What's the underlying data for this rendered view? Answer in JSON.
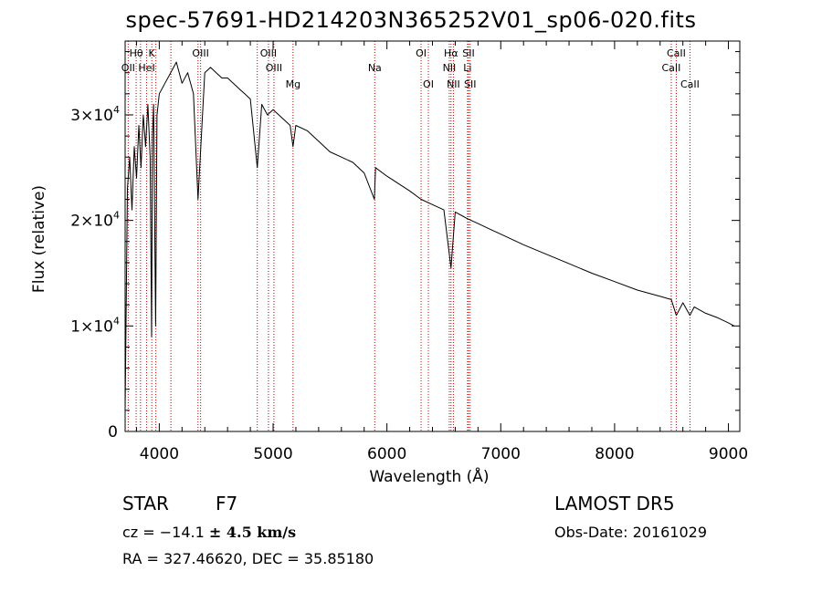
{
  "title": "spec-57691-HD214203N365252V01_sp06-020.fits",
  "info": {
    "class_label": "STAR",
    "subclass": "F7",
    "survey": "LAMOST  DR5",
    "cz_prefix": "cz = −14.1 ",
    "cz_error": "± 4.5 km/s",
    "obs_date": "Obs-Date: 20161029",
    "coords": "RA = 327.46620, DEC =  35.85180"
  },
  "chart_data": {
    "type": "line",
    "title": "spec-57691-HD214203N365252V01_sp06-020.fits",
    "xlabel": "Wavelength (Å)",
    "ylabel": "Flux (relative)",
    "xlim": [
      3700,
      9100
    ],
    "ylim": [
      0,
      37000
    ],
    "xticks": [
      4000,
      5000,
      6000,
      7000,
      8000,
      9000
    ],
    "yticks": [
      {
        "value": 0,
        "mantissa": "0",
        "exp": ""
      },
      {
        "value": 10000,
        "mantissa": "1×10",
        "exp": "4"
      },
      {
        "value": 20000,
        "mantissa": "2×10",
        "exp": "4"
      },
      {
        "value": 30000,
        "mantissa": "3×10",
        "exp": "4"
      }
    ],
    "line_color": "#000000",
    "marker_color": "#cc0000",
    "spectrum": {
      "x": [
        3700,
        3720,
        3740,
        3760,
        3780,
        3800,
        3820,
        3840,
        3860,
        3880,
        3900,
        3920,
        3933,
        3940,
        3950,
        3968,
        3980,
        4000,
        4050,
        4100,
        4150,
        4200,
        4250,
        4300,
        4340,
        4400,
        4450,
        4500,
        4550,
        4600,
        4650,
        4700,
        4750,
        4800,
        4861,
        4900,
        4950,
        5000,
        5050,
        5100,
        5150,
        5175,
        5200,
        5300,
        5400,
        5500,
        5600,
        5700,
        5800,
        5890,
        5900,
        6000,
        6100,
        6200,
        6300,
        6400,
        6500,
        6563,
        6600,
        6700,
        6800,
        6900,
        7000,
        7200,
        7400,
        7600,
        7800,
        8000,
        8200,
        8400,
        8498,
        8542,
        8600,
        8662,
        8700,
        8800,
        8900,
        9000,
        9050
      ],
      "y": [
        2000,
        23000,
        26000,
        21000,
        27000,
        24000,
        29000,
        25000,
        30000,
        27000,
        31000,
        26000,
        9000,
        28000,
        31000,
        10000,
        30000,
        32000,
        33000,
        34000,
        35000,
        33000,
        34000,
        32000,
        22000,
        34000,
        34500,
        34000,
        33500,
        33500,
        33000,
        32500,
        32000,
        31500,
        25000,
        31000,
        30000,
        30500,
        30000,
        29500,
        29000,
        27000,
        29000,
        28500,
        27500,
        26500,
        26000,
        25500,
        24500,
        22000,
        25000,
        24200,
        23500,
        22800,
        22000,
        21500,
        21000,
        15500,
        20800,
        20200,
        19700,
        19200,
        18700,
        17700,
        16800,
        15900,
        15000,
        14200,
        13400,
        12800,
        12500,
        11000,
        12200,
        11000,
        11800,
        11200,
        10800,
        10300,
        10000
      ]
    },
    "lines": [
      {
        "name": "Hθ",
        "x": 3797,
        "row": 1
      },
      {
        "name": "K",
        "x": 3934,
        "row": 1
      },
      {
        "name": "OII",
        "x": 3727,
        "row": 2
      },
      {
        "name": "HeI",
        "x": 3889,
        "row": 2
      },
      {
        "name": "OIII",
        "x": 4363,
        "row": 1
      },
      {
        "name": "OIII",
        "x": 4959,
        "row": 1
      },
      {
        "name": "OIII",
        "x": 5007,
        "row": 2
      },
      {
        "name": "Mg",
        "x": 5175,
        "row": 3
      },
      {
        "name": "Na",
        "x": 5893,
        "row": 2
      },
      {
        "name": "OI",
        "x": 6300,
        "row": 1
      },
      {
        "name": "OI",
        "x": 6364,
        "row": 3
      },
      {
        "name": "Hα",
        "x": 6563,
        "row": 1
      },
      {
        "name": "NII",
        "x": 6548,
        "row": 2
      },
      {
        "name": "NII",
        "x": 6584,
        "row": 3
      },
      {
        "name": "SII",
        "x": 6717,
        "row": 1
      },
      {
        "name": "Li",
        "x": 6708,
        "row": 2
      },
      {
        "name": "SII",
        "x": 6731,
        "row": 3
      },
      {
        "name": "CaII",
        "x": 8542,
        "row": 1
      },
      {
        "name": "CaII",
        "x": 8498,
        "row": 2
      },
      {
        "name": "CaII",
        "x": 8662,
        "row": 3
      }
    ],
    "extra_markers": [
      3835,
      3970,
      4102,
      4340,
      4861
    ]
  }
}
